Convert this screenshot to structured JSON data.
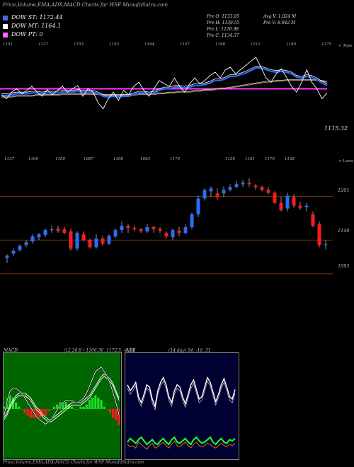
{
  "header": {
    "title": "Price,Volume,EMA,ADX,MACD Charts for WSF MunafaSutra.com"
  },
  "legend": [
    {
      "label": "DOW ST: 1172.44",
      "color": "#4169e1"
    },
    {
      "label": "DOW MT: 1164.1",
      "color": "#ffffff"
    },
    {
      "label": "DOW PT: 0",
      "color": "#ff66ff"
    }
  ],
  "info": {
    "col1": [
      "Pre  O: 1133.05",
      "Pre  H: 1139.55",
      "Pre  L: 1126.98",
      "Pre  C: 1134.37"
    ],
    "col2": [
      "Avg V: 1.024  M",
      "Pre  V: 8.942  M"
    ]
  },
  "colors": {
    "bull": "#2a6cff",
    "bear": "#ff1a1a",
    "pivot": "#ff33ff",
    "macd_hist": "#22dd22",
    "macd_panel": "#006600",
    "adx_panel": "#000033"
  },
  "chart_data": [
    {
      "type": "line",
      "name": "ema-price-panel",
      "top_ticks": [
        "1151",
        "1137",
        "1153",
        "1153",
        "1194",
        "1157",
        "1198",
        "1212",
        "1190",
        "1175"
      ],
      "top_label": "< Tops",
      "bottom_ticks": [
        "1137",
        "1109",
        "1109",
        "1087",
        "1108",
        "1093",
        "1170"
      ],
      "bottom_label": "< Lows",
      "value_label": "1115.32",
      "pivot_value": 1172,
      "ylim": [
        1100,
        1215
      ],
      "price": [
        1165,
        1160,
        1168,
        1172,
        1166,
        1170,
        1175,
        1168,
        1163,
        1171,
        1165,
        1170,
        1175,
        1168,
        1172,
        1176,
        1163,
        1172,
        1168,
        1155,
        1148,
        1160,
        1168,
        1158,
        1170,
        1165,
        1175,
        1180,
        1170,
        1163,
        1172,
        1182,
        1178,
        1175,
        1185,
        1175,
        1168,
        1178,
        1185,
        1178,
        1182,
        1188,
        1192,
        1185,
        1195,
        1198,
        1190,
        1195,
        1200,
        1205,
        1210,
        1198,
        1185,
        1180,
        1190,
        1196,
        1186,
        1175,
        1168,
        1180,
        1195,
        1180,
        1172,
        1160,
        1167
      ],
      "ema_fast": [
        1164,
        1164,
        1165,
        1166,
        1166,
        1166,
        1167,
        1167,
        1166,
        1167,
        1167,
        1167,
        1168,
        1168,
        1168,
        1169,
        1168,
        1168,
        1168,
        1166,
        1163,
        1162,
        1163,
        1162,
        1163,
        1163,
        1165,
        1167,
        1167,
        1166,
        1167,
        1170,
        1172,
        1172,
        1174,
        1174,
        1173,
        1174,
        1176,
        1176,
        1177,
        1179,
        1182,
        1182,
        1184,
        1187,
        1187,
        1189,
        1191,
        1194,
        1197,
        1197,
        1195,
        1193,
        1192,
        1193,
        1192,
        1190,
        1186,
        1185,
        1187,
        1186,
        1183,
        1179,
        1176
      ],
      "ema_slow": [
        1162,
        1162,
        1162,
        1163,
        1163,
        1163,
        1163,
        1164,
        1164,
        1164,
        1164,
        1164,
        1165,
        1165,
        1165,
        1165,
        1165,
        1165,
        1165,
        1165,
        1164,
        1164,
        1164,
        1164,
        1164,
        1164,
        1164,
        1165,
        1165,
        1165,
        1165,
        1166,
        1166,
        1167,
        1167,
        1168,
        1168,
        1168,
        1169,
        1169,
        1170,
        1170,
        1171,
        1172,
        1172,
        1173,
        1174,
        1175,
        1176,
        1177,
        1178,
        1179,
        1180,
        1180,
        1181,
        1181,
        1182,
        1182,
        1182,
        1182,
        1182,
        1182,
        1182,
        1181,
        1180
      ]
    },
    {
      "type": "candlestick",
      "name": "price-candles",
      "levels": [
        1201,
        1140,
        1093
      ],
      "ylim": [
        1080,
        1240
      ],
      "candles": [
        {
          "o": 1115,
          "h": 1120,
          "l": 1108,
          "c": 1118
        },
        {
          "o": 1121,
          "h": 1128,
          "l": 1118,
          "c": 1125
        },
        {
          "o": 1126,
          "h": 1134,
          "l": 1124,
          "c": 1132
        },
        {
          "o": 1133,
          "h": 1140,
          "l": 1130,
          "c": 1137
        },
        {
          "o": 1138,
          "h": 1148,
          "l": 1135,
          "c": 1145
        },
        {
          "o": 1144,
          "h": 1150,
          "l": 1140,
          "c": 1148
        },
        {
          "o": 1147,
          "h": 1156,
          "l": 1144,
          "c": 1154
        },
        {
          "o": 1154,
          "h": 1160,
          "l": 1150,
          "c": 1155
        },
        {
          "o": 1156,
          "h": 1160,
          "l": 1150,
          "c": 1153
        },
        {
          "o": 1155,
          "h": 1158,
          "l": 1148,
          "c": 1150
        },
        {
          "o": 1152,
          "h": 1156,
          "l": 1125,
          "c": 1128
        },
        {
          "o": 1128,
          "h": 1152,
          "l": 1125,
          "c": 1150
        },
        {
          "o": 1148,
          "h": 1152,
          "l": 1138,
          "c": 1140
        },
        {
          "o": 1140,
          "h": 1142,
          "l": 1128,
          "c": 1130
        },
        {
          "o": 1130,
          "h": 1148,
          "l": 1128,
          "c": 1142
        },
        {
          "o": 1142,
          "h": 1146,
          "l": 1132,
          "c": 1135
        },
        {
          "o": 1135,
          "h": 1148,
          "l": 1133,
          "c": 1146
        },
        {
          "o": 1145,
          "h": 1156,
          "l": 1143,
          "c": 1154
        },
        {
          "o": 1154,
          "h": 1166,
          "l": 1150,
          "c": 1160
        },
        {
          "o": 1160,
          "h": 1162,
          "l": 1150,
          "c": 1157
        },
        {
          "o": 1157,
          "h": 1160,
          "l": 1152,
          "c": 1155
        },
        {
          "o": 1155,
          "h": 1157,
          "l": 1150,
          "c": 1152
        },
        {
          "o": 1152,
          "h": 1162,
          "l": 1150,
          "c": 1158
        },
        {
          "o": 1158,
          "h": 1160,
          "l": 1150,
          "c": 1155
        },
        {
          "o": 1155,
          "h": 1158,
          "l": 1150,
          "c": 1153
        },
        {
          "o": 1150,
          "h": 1152,
          "l": 1142,
          "c": 1145
        },
        {
          "o": 1144,
          "h": 1156,
          "l": 1140,
          "c": 1154
        },
        {
          "o": 1153,
          "h": 1158,
          "l": 1145,
          "c": 1150
        },
        {
          "o": 1150,
          "h": 1162,
          "l": 1148,
          "c": 1158
        },
        {
          "o": 1158,
          "h": 1178,
          "l": 1155,
          "c": 1176
        },
        {
          "o": 1176,
          "h": 1202,
          "l": 1172,
          "c": 1198
        },
        {
          "o": 1198,
          "h": 1212,
          "l": 1195,
          "c": 1210
        },
        {
          "o": 1208,
          "h": 1215,
          "l": 1200,
          "c": 1212
        },
        {
          "o": 1205,
          "h": 1212,
          "l": 1196,
          "c": 1200
        },
        {
          "o": 1205,
          "h": 1215,
          "l": 1200,
          "c": 1210
        },
        {
          "o": 1210,
          "h": 1218,
          "l": 1208,
          "c": 1214
        },
        {
          "o": 1214,
          "h": 1222,
          "l": 1212,
          "c": 1218
        },
        {
          "o": 1218,
          "h": 1224,
          "l": 1214,
          "c": 1220
        },
        {
          "o": 1220,
          "h": 1226,
          "l": 1214,
          "c": 1218
        },
        {
          "o": 1216,
          "h": 1218,
          "l": 1210,
          "c": 1214
        },
        {
          "o": 1214,
          "h": 1216,
          "l": 1208,
          "c": 1210
        },
        {
          "o": 1210,
          "h": 1214,
          "l": 1204,
          "c": 1206
        },
        {
          "o": 1206,
          "h": 1208,
          "l": 1190,
          "c": 1192
        },
        {
          "o": 1192,
          "h": 1200,
          "l": 1180,
          "c": 1182
        },
        {
          "o": 1184,
          "h": 1206,
          "l": 1180,
          "c": 1202
        },
        {
          "o": 1200,
          "h": 1204,
          "l": 1185,
          "c": 1188
        },
        {
          "o": 1188,
          "h": 1194,
          "l": 1182,
          "c": 1185
        },
        {
          "o": 1186,
          "h": 1192,
          "l": 1180,
          "c": 1188
        },
        {
          "o": 1176,
          "h": 1180,
          "l": 1158,
          "c": 1160
        },
        {
          "o": 1162,
          "h": 1166,
          "l": 1130,
          "c": 1133
        },
        {
          "o": 1133,
          "h": 1140,
          "l": 1127,
          "c": 1134
        }
      ]
    },
    {
      "type": "line",
      "name": "macd-panel",
      "title": "MACD:",
      "params": "(12,26,9 ) 1166.36,  1172.5,  -6.14",
      "macd": [
        -4,
        2,
        6,
        7,
        7,
        6,
        5,
        3,
        1,
        -1,
        -3,
        -5,
        -6,
        -7,
        -8,
        -7,
        -6,
        -4,
        -2,
        0,
        1,
        2,
        2,
        2,
        1,
        1,
        2,
        3,
        5,
        8,
        11,
        14,
        15,
        16,
        14,
        12,
        9,
        5,
        1,
        -4
      ],
      "signal": [
        -5,
        -3,
        0,
        2,
        4,
        5,
        5,
        5,
        4,
        3,
        1,
        -1,
        -2,
        -4,
        -5,
        -6,
        -6,
        -5,
        -4,
        -3,
        -2,
        -1,
        0,
        1,
        1,
        1,
        1,
        2,
        3,
        4,
        6,
        8,
        10,
        12,
        13,
        12,
        11,
        9,
        6,
        3
      ],
      "histogram": [
        1,
        5,
        6,
        5,
        3,
        1,
        0,
        -2,
        -3,
        -4,
        -4,
        -4,
        -4,
        -3,
        -3,
        -1,
        0,
        1,
        2,
        3,
        3,
        3,
        2,
        1,
        0,
        0,
        1,
        1,
        2,
        4,
        5,
        6,
        5,
        4,
        1,
        0,
        -2,
        -4,
        -5,
        -7
      ]
    },
    {
      "type": "line",
      "name": "adx-panel",
      "title": "ADX",
      "params": "(14 day) 54,  -16,  31",
      "adx_white": [
        60,
        55,
        58,
        62,
        50,
        45,
        52,
        60,
        58,
        48,
        42,
        55,
        62,
        66,
        60,
        50,
        45,
        55,
        60,
        58,
        50,
        44,
        52,
        60,
        64,
        56,
        48,
        50,
        58,
        66,
        62,
        54,
        46,
        52,
        60,
        65,
        58,
        50,
        48,
        56
      ],
      "plus_di": [
        12,
        15,
        13,
        11,
        14,
        16,
        13,
        10,
        12,
        14,
        11,
        10,
        13,
        15,
        12,
        10,
        14,
        16,
        12,
        11,
        13,
        15,
        12,
        10,
        14,
        16,
        13,
        11,
        12,
        14,
        16,
        12,
        10,
        13,
        15,
        12,
        11,
        14,
        13,
        15
      ],
      "minus_di": [
        10,
        8,
        9,
        7,
        12,
        10,
        8,
        6,
        9,
        11,
        7,
        8,
        10,
        12,
        9,
        7,
        10,
        13,
        9,
        8,
        10,
        12,
        9,
        7,
        10,
        12,
        9,
        8,
        9,
        11,
        10,
        8,
        7,
        9,
        11,
        9,
        8,
        10,
        9,
        11
      ]
    }
  ],
  "footer": "Price,Volume,EMA,ADX,MACD Charts for WSF MunafaSutra.com"
}
